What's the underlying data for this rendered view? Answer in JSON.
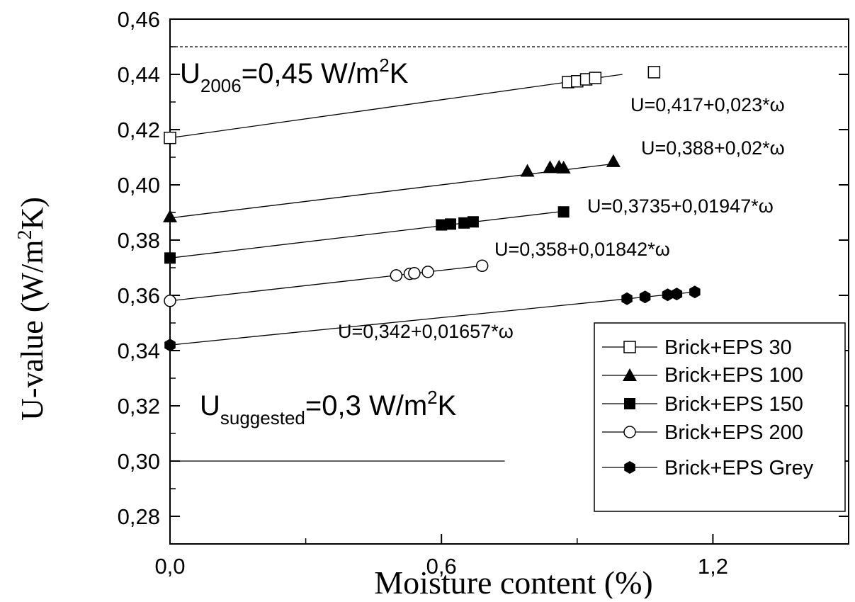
{
  "chart_data": {
    "type": "scatter",
    "xlabel": "Moisture content (%)",
    "ylabel_main": "U-value (W/m",
    "ylabel_sup": "2",
    "ylabel_end": "K)",
    "xlim": [
      0,
      1.5
    ],
    "ylim": [
      0.27,
      0.46
    ],
    "x_ticks": [
      {
        "value": 0.0,
        "label": "0,0"
      },
      {
        "value": 0.6,
        "label": "0,6"
      },
      {
        "value": 1.2,
        "label": "1,2"
      }
    ],
    "y_ticks": [
      {
        "value": 0.28,
        "label": "0,28"
      },
      {
        "value": 0.3,
        "label": "0,30"
      },
      {
        "value": 0.32,
        "label": "0,32"
      },
      {
        "value": 0.34,
        "label": "0,34"
      },
      {
        "value": 0.36,
        "label": "0,36"
      },
      {
        "value": 0.38,
        "label": "0,38"
      },
      {
        "value": 0.4,
        "label": "0,40"
      },
      {
        "value": 0.42,
        "label": "0,42"
      },
      {
        "value": 0.44,
        "label": "0,44"
      },
      {
        "value": 0.46,
        "label": "0,46"
      }
    ],
    "grid": false,
    "legend_position": "bottom-right",
    "series": [
      {
        "name": "Brick+EPS 30",
        "marker": "open-square",
        "x": [
          0.0,
          0.88,
          0.9,
          0.92,
          0.94,
          1.07
        ],
        "y": [
          0.417,
          0.4372,
          0.4375,
          0.4382,
          0.4387,
          0.4408
        ],
        "fit": {
          "intercept": 0.417,
          "slope": 0.023,
          "x_end": 1.0
        },
        "equation": "U=0,417+0,023*ω"
      },
      {
        "name": "Brick+EPS 100",
        "marker": "filled-triangle",
        "x": [
          0.0,
          0.79,
          0.84,
          0.86,
          0.87,
          0.98
        ],
        "y": [
          0.3885,
          0.405,
          0.4063,
          0.4065,
          0.4062,
          0.4085
        ],
        "fit": {
          "intercept": 0.388,
          "slope": 0.02,
          "x_end": 0.98
        },
        "equation": "U=0,388+0,02*ω"
      },
      {
        "name": "Brick+EPS 150",
        "marker": "filled-square",
        "x": [
          0.0,
          0.6,
          0.62,
          0.65,
          0.67,
          0.87
        ],
        "y": [
          0.3735,
          0.3855,
          0.3858,
          0.3862,
          0.3866,
          0.3902
        ],
        "fit": {
          "intercept": 0.3735,
          "slope": 0.01947,
          "x_end": 0.87
        },
        "equation": "U=0,3735+0,01947*ω"
      },
      {
        "name": "Brick+EPS 200",
        "marker": "open-circle",
        "x": [
          0.0,
          0.5,
          0.53,
          0.54,
          0.57,
          0.69
        ],
        "y": [
          0.358,
          0.3672,
          0.3678,
          0.368,
          0.3685,
          0.3707
        ],
        "fit": {
          "intercept": 0.358,
          "slope": 0.01842,
          "x_end": 0.69
        },
        "equation": "U=0,358+0,01842*ω"
      },
      {
        "name": "Brick+EPS Grey",
        "marker": "filled-hexagon",
        "x": [
          0.0,
          1.01,
          1.05,
          1.1,
          1.12,
          1.16
        ],
        "y": [
          0.342,
          0.3588,
          0.3594,
          0.3602,
          0.3605,
          0.3612
        ],
        "fit": {
          "intercept": 0.342,
          "slope": 0.01657,
          "x_end": 1.16
        },
        "equation": "U=0,342+0,01657*ω"
      }
    ],
    "reference_lines": [
      {
        "value": 0.45,
        "style": "dashed",
        "x_end": 1.5
      },
      {
        "value": 0.3,
        "style": "solid",
        "x_end": 0.74
      }
    ],
    "annotations": {
      "u2006": {
        "main": "U",
        "sub": "2006",
        "rest": "=0,45 W/m",
        "sup": "2",
        "end": "K"
      },
      "usuggested": {
        "main": "U",
        "sub": "suggested",
        "rest": "=0,3 W/m",
        "sup": "2",
        "end": "K"
      }
    }
  }
}
